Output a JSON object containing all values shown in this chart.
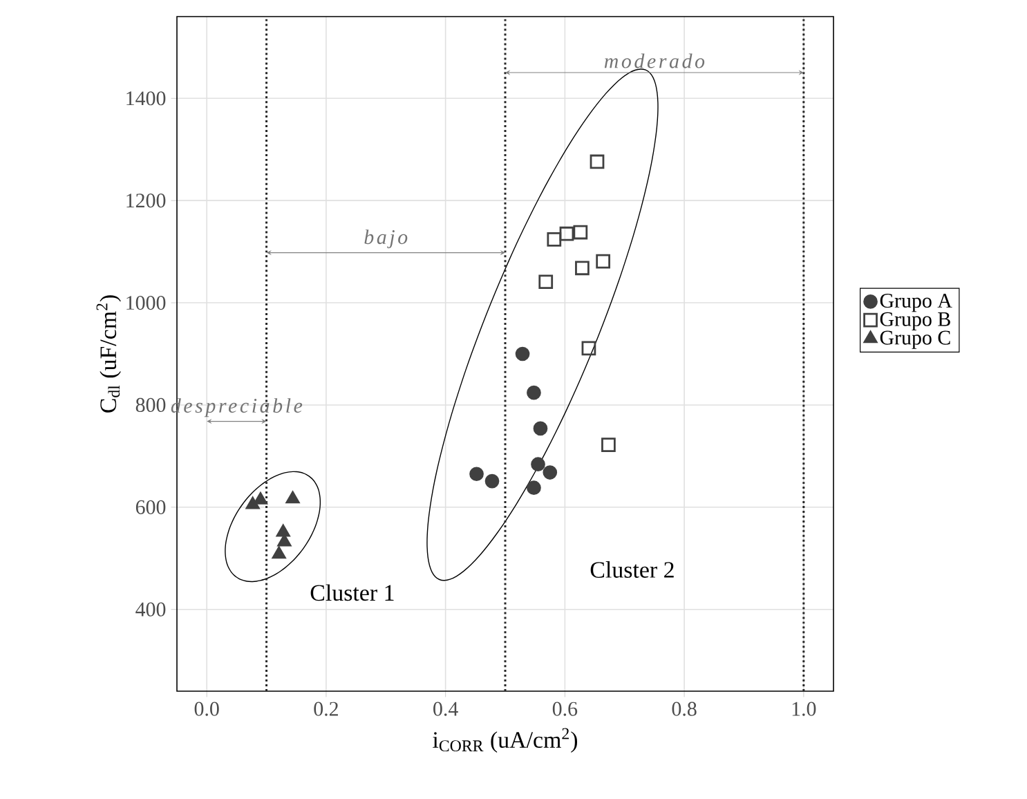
{
  "chart_data": {
    "type": "scatter",
    "xlabel": "i$_{CORR}$ (uA/cm$^{2}$)",
    "ylabel": "C$_{dl}$ (uF/cm$^{2}$)",
    "xlim": [
      -0.05,
      1.05
    ],
    "ylim": [
      240,
      1560
    ],
    "xticks": [
      {
        "value": 0,
        "label": "0.0"
      },
      0.2,
      0.4,
      0.6,
      0.8,
      {
        "value": 1,
        "label": "1.0"
      }
    ],
    "yticks": [
      400,
      600,
      800,
      1000,
      1200,
      1400
    ],
    "grid": true,
    "legend": "right",
    "series": [
      {
        "name": "Grupo A",
        "color": "#404040",
        "marker": "circle",
        "x": [
          0.529,
          0.548,
          0.559,
          0.555,
          0.575,
          0.452,
          0.478,
          0.548
        ],
        "values": [
          900,
          824,
          754,
          684,
          668,
          665,
          651,
          638
        ]
      },
      {
        "name": "Grupo B",
        "color": "#404040",
        "marker": "square",
        "x": [
          0.654,
          0.582,
          0.603,
          0.626,
          0.664,
          0.629,
          0.568,
          0.64,
          0.673
        ],
        "values": [
          1276,
          1124,
          1135,
          1138,
          1081,
          1068,
          1041,
          911,
          722
        ]
      },
      {
        "name": "Grupo C",
        "color": "#404040",
        "marker": "triangle",
        "x": [
          0.077,
          0.09,
          0.144,
          0.128,
          0.13,
          0.121
        ],
        "values": [
          605,
          614,
          616,
          551,
          532,
          508
        ]
      }
    ],
    "ref_lines": [
      {
        "axis": "x",
        "value": 0.1,
        "line_style": "dotted"
      },
      {
        "axis": "x",
        "value": 0.5,
        "line_style": "dotted"
      },
      {
        "axis": "x",
        "value": 1.0,
        "line_style": "dotted"
      }
    ],
    "annotations": [
      "despreciable",
      "bajo",
      "moderado",
      "Cluster 1",
      "Cluster 2"
    ]
  }
}
